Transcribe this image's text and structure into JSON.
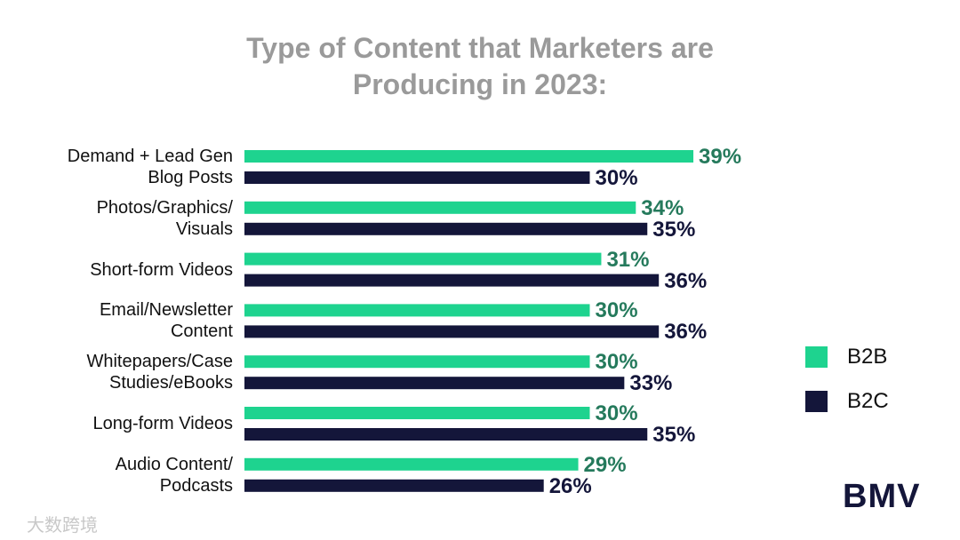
{
  "chart_data": {
    "type": "bar",
    "orientation": "horizontal",
    "title": "Type of Content that Marketers are\nProducing in 2023:",
    "categories": [
      "Demand + Lead Gen\nBlog Posts",
      "Photos/Graphics/\nVisuals",
      "Short-form Videos",
      "Email/Newsletter\nContent",
      "Whitepapers/Case\nStudies/eBooks",
      "Long-form Videos",
      "Audio Content/\nPodcasts"
    ],
    "series": [
      {
        "name": "B2B",
        "color": "#1ed38f",
        "label_color": "#257a5c",
        "values": [
          39,
          34,
          31,
          30,
          30,
          30,
          29
        ],
        "value_labels": [
          "39%",
          "34%",
          "31%",
          "30%",
          "30%",
          "30%",
          "29%"
        ]
      },
      {
        "name": "B2C",
        "color": "#14163a",
        "label_color": "#14163a",
        "values": [
          30,
          35,
          36,
          36,
          33,
          35,
          26
        ],
        "value_labels": [
          "30%",
          "35%",
          "36%",
          "36%",
          "33%",
          "35%",
          "26%"
        ]
      }
    ],
    "legend": "right",
    "logo": "BMV",
    "watermark": "大数跨境"
  }
}
